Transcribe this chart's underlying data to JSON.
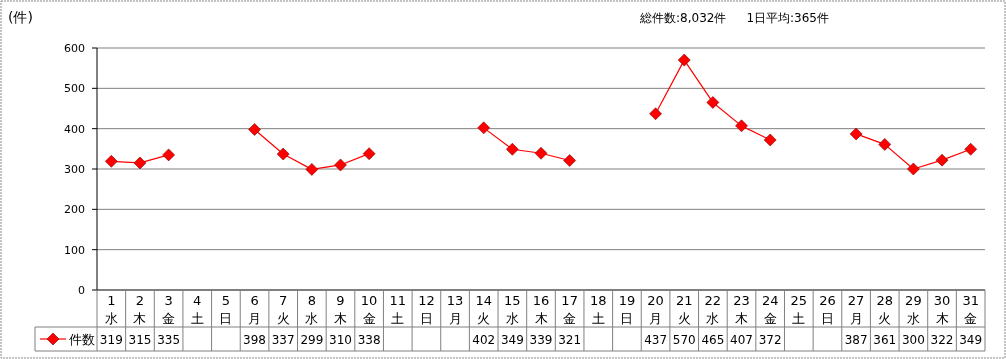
{
  "chart_data": {
    "type": "line",
    "ylabel": "(件)",
    "annotations": [
      "総件数:8,032件",
      "1日平均:365件"
    ],
    "categories": [
      "1\n水",
      "2\n木",
      "3\n金",
      "4\n土",
      "5\n日",
      "6\n月",
      "7\n火",
      "8\n水",
      "9\n木",
      "10\n金",
      "11\n土",
      "12\n日",
      "13\n月",
      "14\n火",
      "15\n水",
      "16\n木",
      "17\n金",
      "18\n土",
      "19\n日",
      "20\n月",
      "21\n火",
      "22\n水",
      "23\n木",
      "24\n金",
      "25\n土",
      "26\n日",
      "27\n月",
      "28\n火",
      "29\n水",
      "30\n木",
      "31\n金"
    ],
    "series": [
      {
        "name": "件数",
        "color": "#ff0000",
        "values": [
          319,
          315,
          335,
          null,
          null,
          398,
          337,
          299,
          310,
          338,
          null,
          null,
          null,
          402,
          349,
          339,
          321,
          null,
          null,
          437,
          570,
          465,
          407,
          372,
          null,
          null,
          387,
          361,
          300,
          322,
          349
        ]
      }
    ],
    "ylim": [
      0,
      600
    ],
    "yticks": [
      0,
      100,
      200,
      300,
      400,
      500,
      600
    ],
    "grid": "y",
    "marker": "diamond",
    "data_labels": true,
    "legend": "bottom left"
  }
}
